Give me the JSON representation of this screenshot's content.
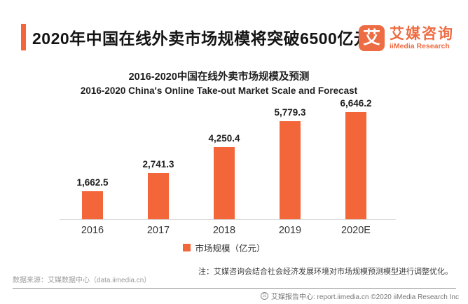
{
  "header": {
    "title": "2020年中国在线外卖市场规模将突破6500亿元",
    "accent_color": "#F3663A",
    "logo": {
      "mark": "艾",
      "name_cn": "艾媒咨询",
      "name_en": "iiMedia Research",
      "color": "#EE6C43"
    }
  },
  "chart": {
    "title_cn": "2016-2020中国在线外卖市场规模及预测",
    "title_en": "2016-2020 China's Online Take-out Market Scale and Forecast",
    "legend_label": "市场规模（亿元）"
  },
  "chart_data": {
    "type": "bar",
    "categories": [
      "2016",
      "2017",
      "2018",
      "2019",
      "2020E"
    ],
    "values": [
      1662.5,
      2741.3,
      4250.4,
      5779.3,
      6646.2
    ],
    "value_labels": [
      "1,662.5",
      "2,741.3",
      "4,250.4",
      "5,779.3",
      "6,646.2"
    ],
    "title": "2016-2020中国在线外卖市场规模及预测",
    "subtitle": "2016-2020 China's Online Take-out Market Scale and Forecast",
    "xlabel": "",
    "ylabel": "市场规模（亿元）",
    "ylim": [
      0,
      6646.2
    ],
    "bar_color": "#F3663A",
    "grid": false,
    "legend_position": "bottom-center"
  },
  "notes": {
    "annotation": "注：艾媒咨询会结合社会经济发展环境对市场规模预测模型进行调整优化。",
    "data_source": "数据来源：艾媒数据中心（data.iimedia.cn）"
  },
  "footer": {
    "text": "艾媒报告中心: report.iimedia.cn  ©2020  iiMedia Research Inc",
    "icon_glyph": "艾"
  }
}
